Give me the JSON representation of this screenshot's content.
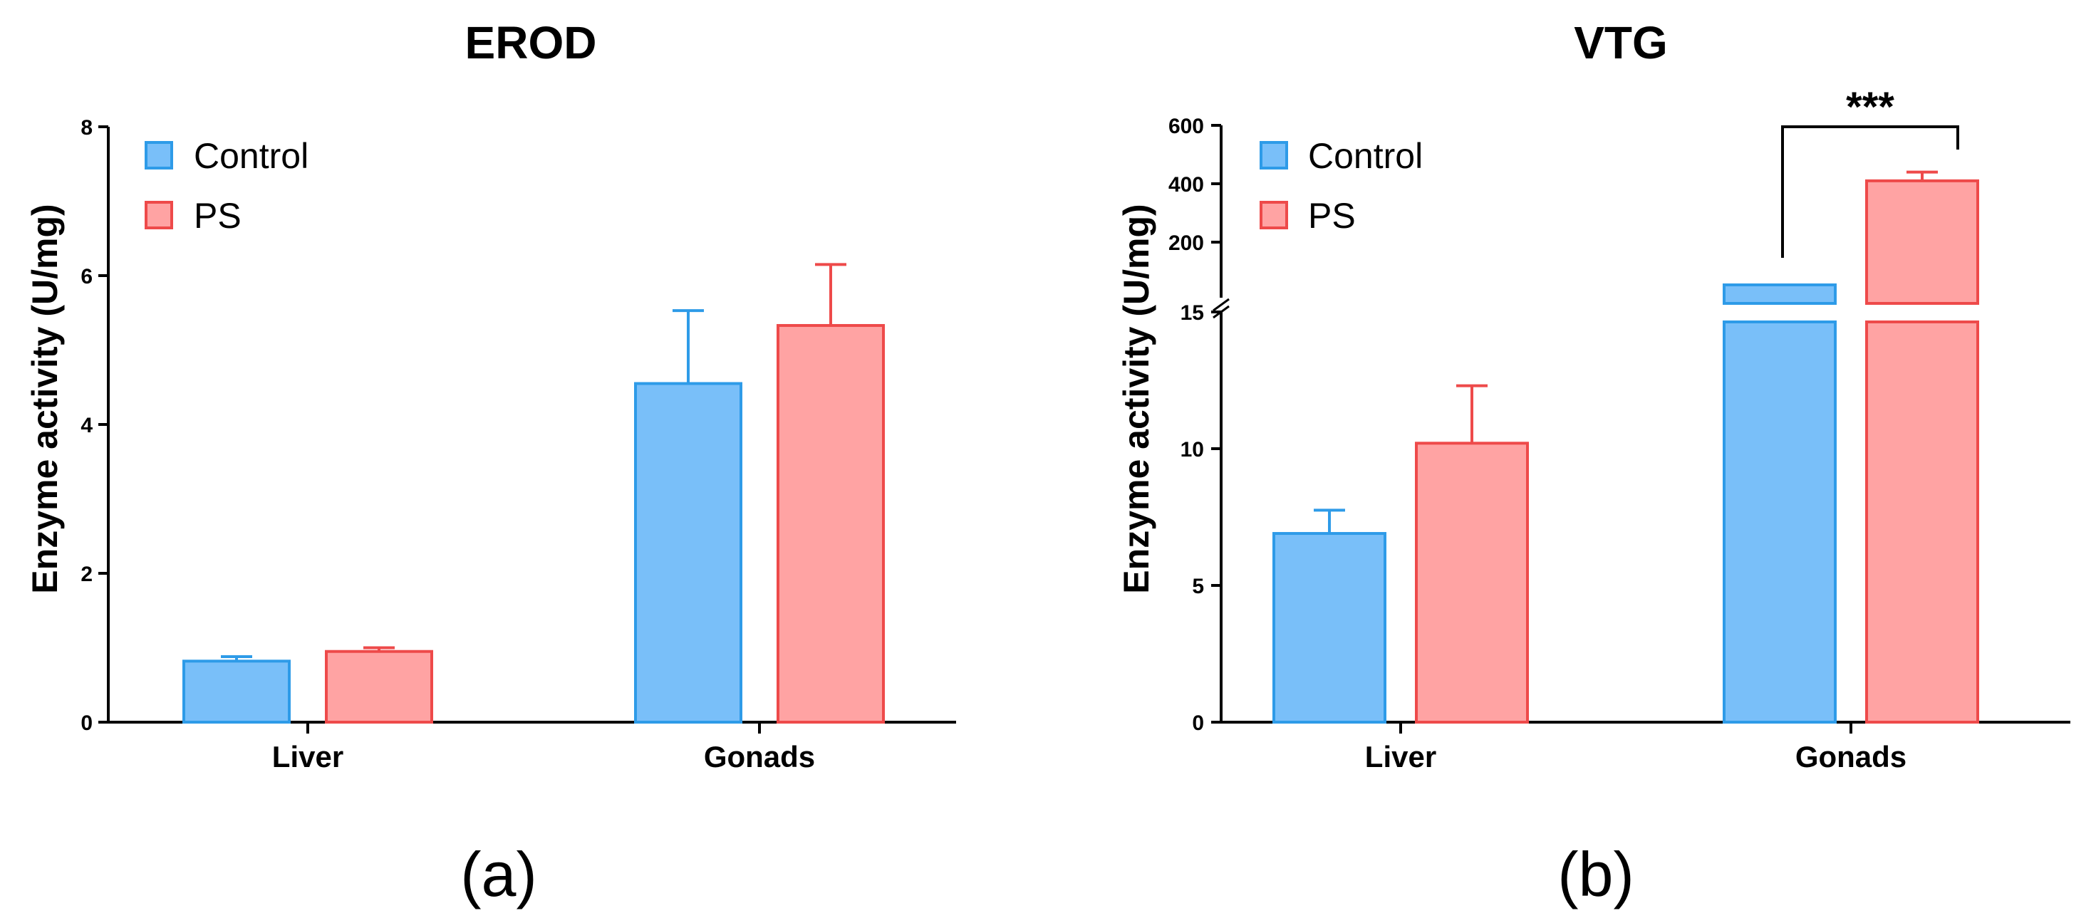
{
  "colors": {
    "control_fill": "#79BFF9",
    "control_stroke": "#2E9BE8",
    "ps_fill": "#FFA3A3",
    "ps_stroke": "#EE4A4A"
  },
  "chart_data": [
    {
      "type": "bar",
      "title": "EROD",
      "panel_label": "(a)",
      "ylabel": "Enzyme activity (U/mg)",
      "xlabel": "",
      "categories": [
        "Liver",
        "Gonads"
      ],
      "series": [
        {
          "name": "Control",
          "values": [
            0.82,
            4.55
          ],
          "errors": [
            0.06,
            0.98
          ]
        },
        {
          "name": "PS",
          "values": [
            0.95,
            5.33
          ],
          "errors": [
            0.05,
            0.82
          ]
        }
      ],
      "ylim": [
        0,
        8
      ],
      "yticks": [
        "0",
        "2",
        "4",
        "6",
        "8"
      ],
      "legend": "top-left",
      "grid": false
    },
    {
      "type": "bar",
      "title": "VTG",
      "panel_label": "(b)",
      "ylabel": "Enzyme activity (U/mg)",
      "xlabel": "",
      "categories": [
        "Liver",
        "Gonads"
      ],
      "series": [
        {
          "name": "Control",
          "values": [
            6.9,
            90
          ],
          "errors": [
            0.85,
            0
          ]
        },
        {
          "name": "PS",
          "values": [
            10.2,
            410
          ],
          "errors": [
            2.1,
            30
          ]
        }
      ],
      "axis_break": true,
      "ylim_lower": [
        0,
        15
      ],
      "ylim_upper": [
        0,
        600
      ],
      "yticks_lower": [
        "0",
        "5",
        "10",
        "15"
      ],
      "yticks_upper": [
        "200",
        "400",
        "600"
      ],
      "significance": {
        "label": "***",
        "category": "Gonads",
        "between": [
          "Control",
          "PS"
        ]
      },
      "legend": "top-left",
      "grid": false
    }
  ]
}
